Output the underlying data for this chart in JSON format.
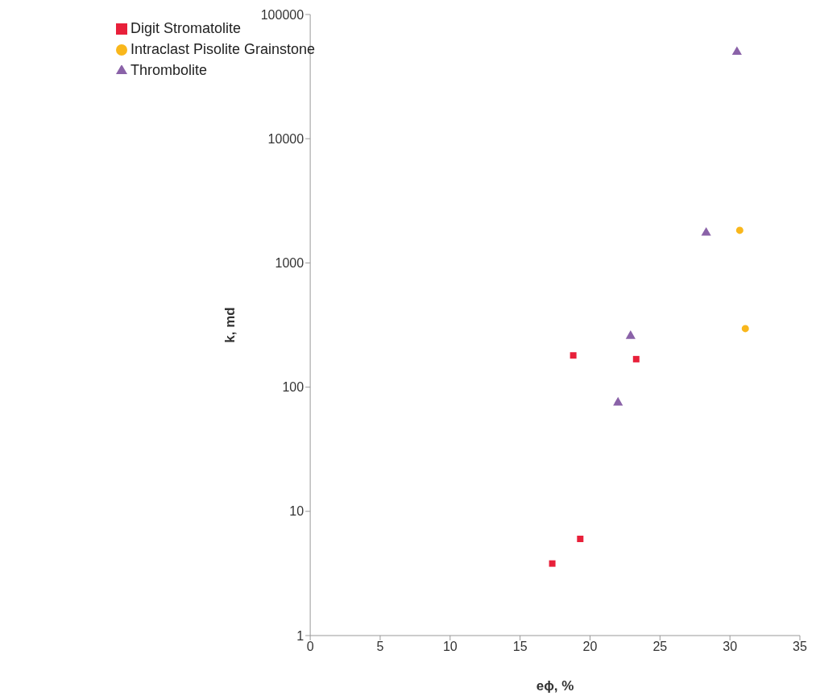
{
  "chart_data": {
    "type": "scatter",
    "xlabel": "eϕ, %",
    "ylabel": "k, md",
    "log": "y",
    "xlim": [
      0,
      35
    ],
    "xticks": [
      0,
      5,
      10,
      15,
      20,
      25,
      30,
      35
    ],
    "ylim": [
      1,
      100000
    ],
    "yticks": [
      1,
      10,
      100,
      1000,
      10000,
      100000
    ],
    "grid": false,
    "legend": "top left",
    "series": [
      {
        "name": "Digit Stromatolite",
        "color": "#e8203a",
        "marker": "square",
        "x": [
          18.8,
          23.3,
          19.3,
          17.3
        ],
        "values": [
          180,
          168,
          6,
          3.8
        ]
      },
      {
        "name": "Intraclast Pisolite Grainstone",
        "color": "#f9b71c",
        "marker": "circle",
        "x": [
          30.7,
          31.1
        ],
        "values": [
          1830,
          296
        ]
      },
      {
        "name": "Thrombolite",
        "color": "#8a62a8",
        "marker": "triangle",
        "x": [
          30.5,
          28.3,
          22.9,
          22.0
        ],
        "values": [
          50000,
          1750,
          258,
          75
        ]
      }
    ]
  }
}
